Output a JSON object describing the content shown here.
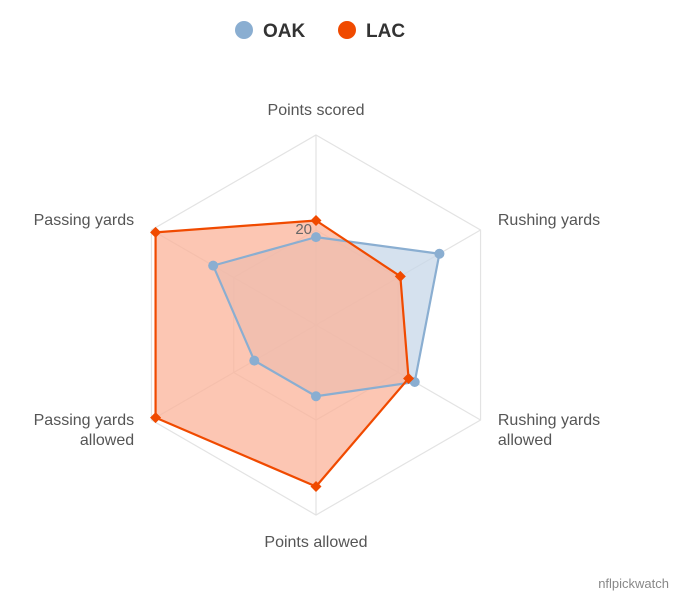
{
  "chart_data": {
    "type": "radar",
    "legend": [
      {
        "name": "OAK",
        "color": "#8aaed1"
      },
      {
        "name": "LAC",
        "color": "#f04a00"
      }
    ],
    "axes": [
      "Points scored",
      "Rushing yards",
      "Rushing yards allowed",
      "Points allowed",
      "Passing yards allowed",
      "Passing yards"
    ],
    "axis_label_lines": [
      [
        "Points scored"
      ],
      [
        "Rushing yards"
      ],
      [
        "Rushing yards",
        "allowed"
      ],
      [
        "Points allowed"
      ],
      [
        "Passing yards",
        "allowed"
      ],
      [
        "Passing yards"
      ]
    ],
    "scale_max": 40,
    "ticks": [
      20
    ],
    "tick_labels": [
      "20"
    ],
    "series": [
      {
        "name": "OAK",
        "color": "#8aaed1",
        "fill": "#c7d7e8",
        "values": [
          18.5,
          30,
          24,
          15,
          15,
          25
        ]
      },
      {
        "name": "LAC",
        "color": "#f04a00",
        "fill": "#fbb39a",
        "values": [
          22,
          20.5,
          22.5,
          34,
          39,
          39
        ]
      }
    ]
  },
  "credit": "nflpickwatch"
}
